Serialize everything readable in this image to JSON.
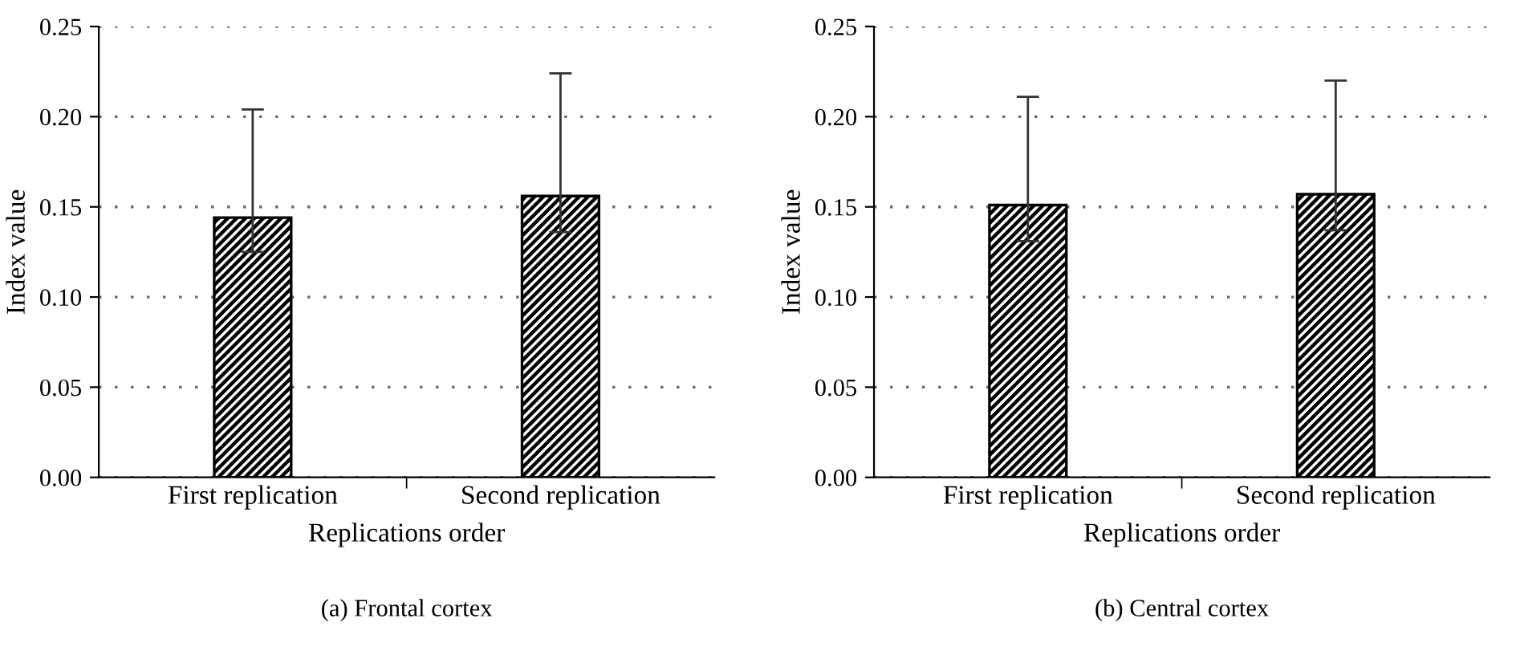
{
  "chart_data": [
    {
      "type": "bar",
      "title": "(a) Frontal cortex",
      "xlabel": "Replications order",
      "ylabel": "Index value",
      "categories": [
        "First replication",
        "Second replication"
      ],
      "values": [
        0.144,
        0.156
      ],
      "errors": [
        [
          0.125,
          0.204
        ],
        [
          0.136,
          0.224
        ]
      ],
      "color": "#000000",
      "ylim": [
        0,
        0.25
      ],
      "yticks": [
        {
          "value": 0,
          "label": "0.00"
        },
        {
          "value": 0.05,
          "label": "0.05"
        },
        {
          "value": 0.1,
          "label": "0.10"
        },
        {
          "value": 0.15,
          "label": "0.15"
        },
        {
          "value": 0.2,
          "label": "0.20"
        },
        {
          "value": 0.25,
          "label": "0.25"
        }
      ],
      "grid": "y"
    },
    {
      "type": "bar",
      "title": "(b) Central cortex",
      "xlabel": "Replications order",
      "ylabel": "Index value",
      "categories": [
        "First replication",
        "Second replication"
      ],
      "values": [
        0.151,
        0.157
      ],
      "errors": [
        [
          0.131,
          0.211
        ],
        [
          0.137,
          0.22
        ]
      ],
      "color": "#000000",
      "ylim": [
        0,
        0.25
      ],
      "yticks": [
        {
          "value": 0,
          "label": "0.00"
        },
        {
          "value": 0.05,
          "label": "0.05"
        },
        {
          "value": 0.1,
          "label": "0.10"
        },
        {
          "value": 0.15,
          "label": "0.15"
        },
        {
          "value": 0.2,
          "label": "0.20"
        },
        {
          "value": 0.25,
          "label": "0.25"
        }
      ],
      "grid": "y"
    }
  ]
}
